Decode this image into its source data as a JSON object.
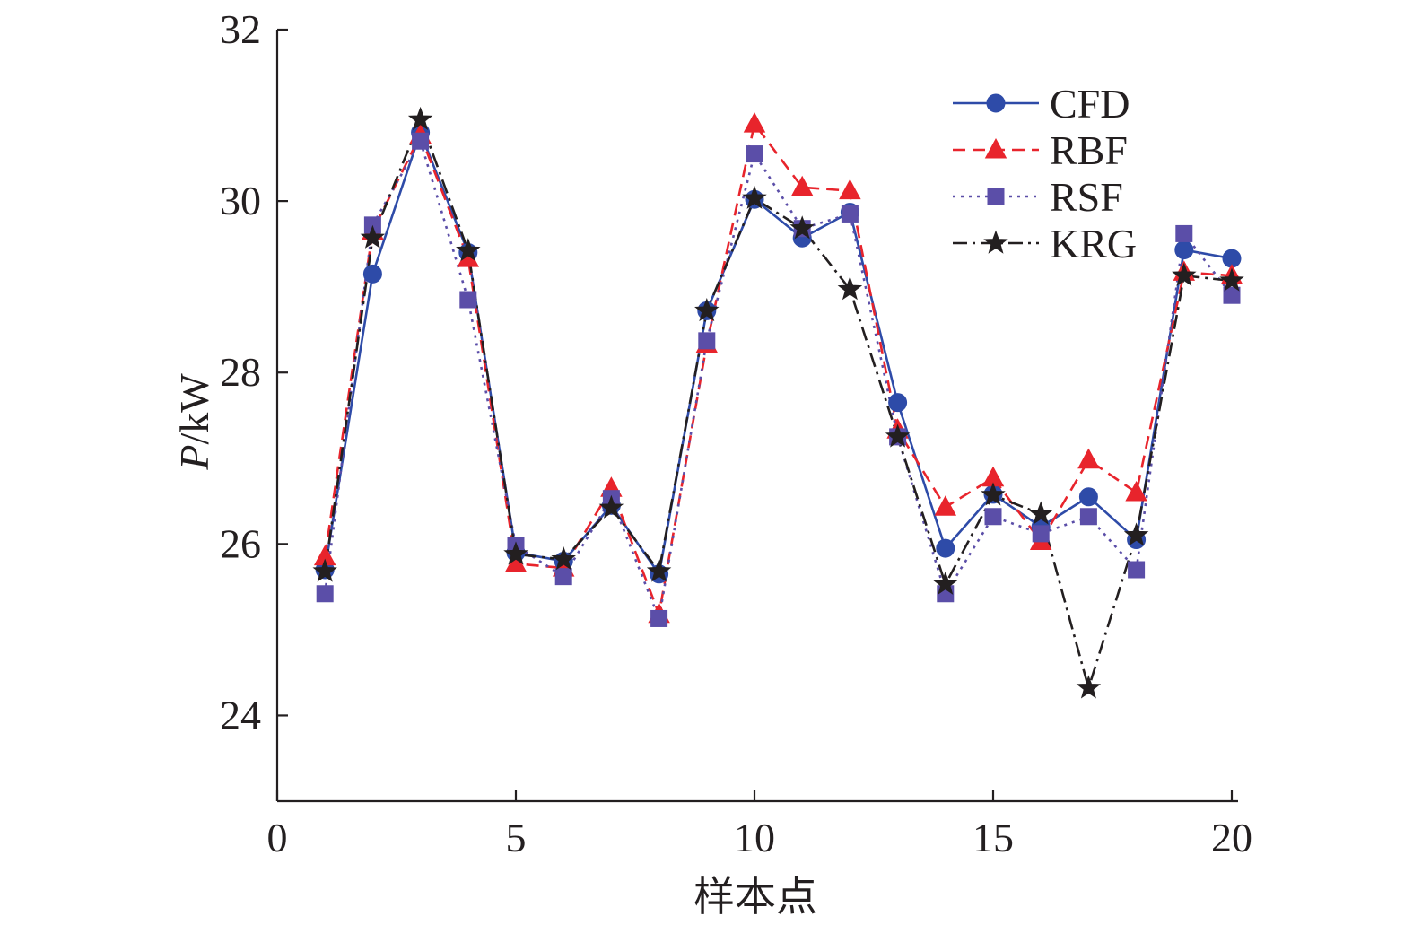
{
  "chart_data": {
    "type": "line",
    "xlabel": "样本点",
    "ylabel_italic": "P",
    "ylabel_unit": "/kW",
    "xlim": [
      0,
      20
    ],
    "ylim": [
      23,
      32
    ],
    "xticks": [
      0,
      5,
      10,
      15,
      20
    ],
    "yticks": [
      24,
      26,
      28,
      30,
      32
    ],
    "legend_position": "top-right",
    "grid": false,
    "x": [
      1,
      2,
      3,
      4,
      5,
      6,
      7,
      8,
      9,
      10,
      11,
      12,
      13,
      14,
      15,
      16,
      17,
      18,
      19,
      20
    ],
    "series": [
      {
        "name": "CFD",
        "color": "#2e4ba8",
        "dash": "solid",
        "marker": "circle",
        "values": [
          25.7,
          29.15,
          30.8,
          29.4,
          25.9,
          25.8,
          26.45,
          25.65,
          28.72,
          30.02,
          29.57,
          29.87,
          27.65,
          25.95,
          26.58,
          26.2,
          26.55,
          26.05,
          29.43,
          29.33
        ]
      },
      {
        "name": "RBF",
        "color": "#e8242c",
        "dash": "dashed",
        "marker": "triangle",
        "values": [
          25.85,
          29.65,
          30.77,
          29.33,
          25.77,
          25.72,
          26.65,
          25.18,
          28.33,
          30.9,
          30.16,
          30.12,
          27.33,
          26.43,
          26.77,
          26.03,
          26.98,
          26.6,
          29.17,
          29.13
        ]
      },
      {
        "name": "RSF",
        "color": "#5b4ea8",
        "dash": "dotted",
        "marker": "square",
        "values": [
          25.42,
          29.72,
          30.7,
          28.85,
          25.98,
          25.62,
          26.53,
          25.13,
          28.37,
          30.55,
          29.68,
          29.85,
          27.25,
          25.42,
          26.32,
          26.12,
          26.32,
          25.7,
          29.62,
          28.9
        ]
      },
      {
        "name": "KRG",
        "color": "#231f20",
        "dash": "dashdot",
        "marker": "star",
        "values": [
          25.68,
          29.57,
          30.95,
          29.42,
          25.88,
          25.82,
          26.42,
          25.68,
          28.72,
          30.03,
          29.68,
          28.97,
          27.25,
          25.53,
          26.57,
          26.35,
          24.32,
          26.1,
          29.13,
          29.07
        ]
      }
    ]
  }
}
